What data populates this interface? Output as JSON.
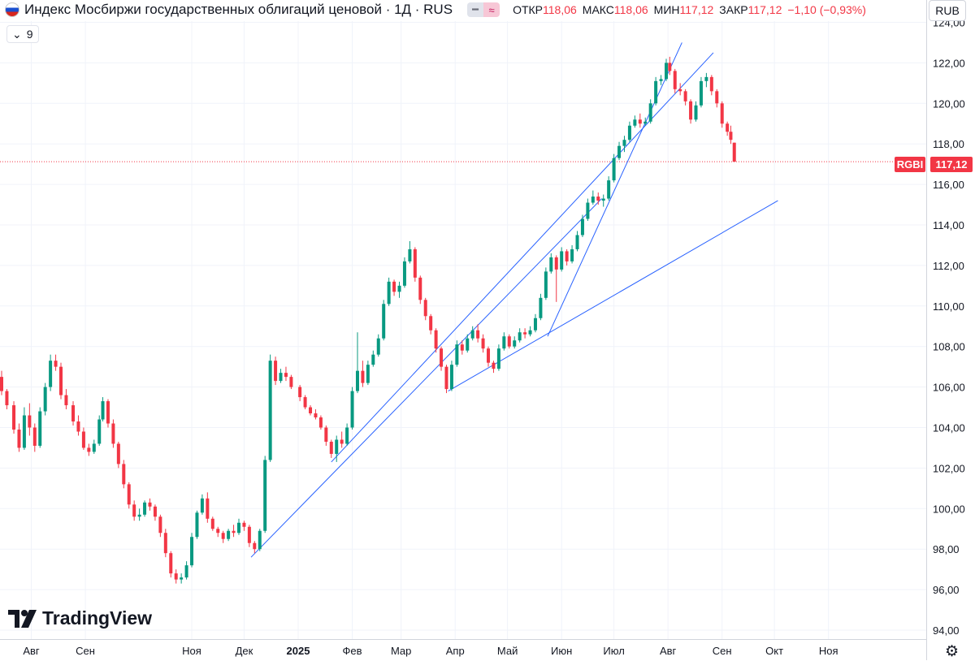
{
  "header": {
    "title": "Индекс Мосбиржи государственных облигаций ценовой · 1Д · RUS",
    "badge_left_icon": "minus-icon",
    "badge_right_icon": "approx-icon",
    "open_label": "ОТКР",
    "open_value": "118,06",
    "high_label": "МАКС",
    "high_value": "118,06",
    "low_label": "МИН",
    "low_value": "117,12",
    "close_label": "ЗАКР",
    "close_value": "117,12",
    "change": "−1,10 (−0,93%)",
    "up_color": "#089981",
    "down_color": "#f23645"
  },
  "indicator": {
    "chevron": "⌄",
    "value": "9"
  },
  "currency": "RUB",
  "price_tag": {
    "symbol": "RGBI",
    "price": "117,12"
  },
  "brand": "TradingView",
  "chart_data": {
    "type": "candlestick",
    "ylim": [
      94,
      124
    ],
    "y_ticks": [
      "94,00",
      "96,00",
      "98,00",
      "100,00",
      "102,00",
      "104,00",
      "106,00",
      "108,00",
      "110,00",
      "112,00",
      "114,00",
      "116,00",
      "118,00",
      "120,00",
      "122,00",
      "124,00"
    ],
    "x_ticks": [
      "Авг",
      "Сен",
      "Ноя",
      "Дек",
      "2025",
      "Фев",
      "Мар",
      "Апр",
      "Май",
      "Июн",
      "Июл",
      "Авг",
      "Сен",
      "Окт",
      "Ноя"
    ],
    "last_price": 117.12,
    "colors": {
      "up": "#089981",
      "down": "#f23645",
      "trendline": "#2962ff"
    },
    "candles": [
      {
        "d": "2024-07-15",
        "o": 106.5,
        "h": 106.8,
        "l": 105.6,
        "c": 105.8
      },
      {
        "d": "2024-07-18",
        "o": 105.8,
        "h": 105.9,
        "l": 104.9,
        "c": 105.1
      },
      {
        "d": "2024-07-22",
        "o": 105.1,
        "h": 105.3,
        "l": 103.7,
        "c": 103.9
      },
      {
        "d": "2024-07-25",
        "o": 103.9,
        "h": 104.2,
        "l": 102.8,
        "c": 103.0
      },
      {
        "d": "2024-07-28",
        "o": 103.0,
        "h": 105.0,
        "l": 102.9,
        "c": 104.6
      },
      {
        "d": "2024-07-31",
        "o": 104.6,
        "h": 105.2,
        "l": 103.6,
        "c": 104.0
      },
      {
        "d": "2024-08-03",
        "o": 104.0,
        "h": 104.2,
        "l": 102.8,
        "c": 103.1
      },
      {
        "d": "2024-08-06",
        "o": 103.1,
        "h": 105.0,
        "l": 103.0,
        "c": 104.8
      },
      {
        "d": "2024-08-09",
        "o": 104.8,
        "h": 106.2,
        "l": 104.6,
        "c": 106.0
      },
      {
        "d": "2024-08-12",
        "o": 106.0,
        "h": 107.6,
        "l": 105.8,
        "c": 107.3
      },
      {
        "d": "2024-08-15",
        "o": 107.3,
        "h": 107.6,
        "l": 106.8,
        "c": 107.0
      },
      {
        "d": "2024-08-18",
        "o": 107.0,
        "h": 107.2,
        "l": 105.4,
        "c": 105.6
      },
      {
        "d": "2024-08-21",
        "o": 105.6,
        "h": 105.9,
        "l": 104.9,
        "c": 105.1
      },
      {
        "d": "2024-08-25",
        "o": 105.1,
        "h": 105.3,
        "l": 104.1,
        "c": 104.3
      },
      {
        "d": "2024-08-28",
        "o": 104.3,
        "h": 104.6,
        "l": 103.6,
        "c": 103.8
      },
      {
        "d": "2024-08-31",
        "o": 103.8,
        "h": 104.0,
        "l": 102.9,
        "c": 103.0
      },
      {
        "d": "2024-09-03",
        "o": 103.0,
        "h": 103.2,
        "l": 102.6,
        "c": 102.8
      },
      {
        "d": "2024-09-06",
        "o": 102.8,
        "h": 103.4,
        "l": 102.7,
        "c": 103.2
      },
      {
        "d": "2024-09-09",
        "o": 103.2,
        "h": 104.6,
        "l": 103.1,
        "c": 104.4
      },
      {
        "d": "2024-09-11",
        "o": 104.4,
        "h": 105.5,
        "l": 104.3,
        "c": 105.3
      },
      {
        "d": "2024-09-14",
        "o": 105.3,
        "h": 105.4,
        "l": 104.0,
        "c": 104.2
      },
      {
        "d": "2024-09-17",
        "o": 104.2,
        "h": 104.4,
        "l": 103.0,
        "c": 103.2
      },
      {
        "d": "2024-09-20",
        "o": 103.2,
        "h": 103.3,
        "l": 102.0,
        "c": 102.2
      },
      {
        "d": "2024-09-23",
        "o": 102.2,
        "h": 102.4,
        "l": 101.0,
        "c": 101.2
      },
      {
        "d": "2024-09-26",
        "o": 101.2,
        "h": 101.3,
        "l": 100.0,
        "c": 100.2
      },
      {
        "d": "2024-09-29",
        "o": 100.2,
        "h": 100.4,
        "l": 99.4,
        "c": 99.6
      },
      {
        "d": "2024-10-02",
        "o": 99.6,
        "h": 100.0,
        "l": 99.4,
        "c": 99.7
      },
      {
        "d": "2024-10-05",
        "o": 99.7,
        "h": 100.4,
        "l": 99.6,
        "c": 100.3
      },
      {
        "d": "2024-10-08",
        "o": 100.3,
        "h": 100.5,
        "l": 99.9,
        "c": 100.1
      },
      {
        "d": "2024-10-11",
        "o": 100.1,
        "h": 100.2,
        "l": 99.4,
        "c": 99.6
      },
      {
        "d": "2024-10-14",
        "o": 99.6,
        "h": 99.7,
        "l": 98.6,
        "c": 98.8
      },
      {
        "d": "2024-10-17",
        "o": 98.8,
        "h": 99.0,
        "l": 97.6,
        "c": 97.8
      },
      {
        "d": "2024-10-20",
        "o": 97.8,
        "h": 97.9,
        "l": 96.6,
        "c": 96.8
      },
      {
        "d": "2024-10-23",
        "o": 96.8,
        "h": 97.0,
        "l": 96.3,
        "c": 96.5
      },
      {
        "d": "2024-10-26",
        "o": 96.5,
        "h": 96.8,
        "l": 96.3,
        "c": 96.6
      },
      {
        "d": "2024-10-29",
        "o": 96.6,
        "h": 97.4,
        "l": 96.5,
        "c": 97.2
      },
      {
        "d": "2024-11-01",
        "o": 97.2,
        "h": 98.8,
        "l": 97.1,
        "c": 98.6
      },
      {
        "d": "2024-11-04",
        "o": 98.6,
        "h": 99.9,
        "l": 98.5,
        "c": 99.8
      },
      {
        "d": "2024-11-07",
        "o": 99.8,
        "h": 100.7,
        "l": 99.7,
        "c": 100.5
      },
      {
        "d": "2024-11-10",
        "o": 100.5,
        "h": 100.8,
        "l": 99.3,
        "c": 99.5
      },
      {
        "d": "2024-11-13",
        "o": 99.5,
        "h": 99.6,
        "l": 98.9,
        "c": 99.0
      },
      {
        "d": "2024-11-16",
        "o": 99.0,
        "h": 99.1,
        "l": 98.6,
        "c": 98.8
      },
      {
        "d": "2024-11-19",
        "o": 98.8,
        "h": 98.9,
        "l": 98.3,
        "c": 98.5
      },
      {
        "d": "2024-11-22",
        "o": 98.5,
        "h": 99.0,
        "l": 98.4,
        "c": 98.9
      },
      {
        "d": "2024-11-25",
        "o": 98.9,
        "h": 99.2,
        "l": 98.6,
        "c": 98.8
      },
      {
        "d": "2024-11-28",
        "o": 98.8,
        "h": 99.5,
        "l": 98.7,
        "c": 99.3
      },
      {
        "d": "2024-12-01",
        "o": 99.3,
        "h": 99.4,
        "l": 98.9,
        "c": 99.1
      },
      {
        "d": "2024-12-04",
        "o": 99.1,
        "h": 99.2,
        "l": 98.1,
        "c": 98.3
      },
      {
        "d": "2024-12-07",
        "o": 98.3,
        "h": 98.4,
        "l": 97.8,
        "c": 98.0
      },
      {
        "d": "2024-12-10",
        "o": 98.0,
        "h": 99.0,
        "l": 97.9,
        "c": 98.9
      },
      {
        "d": "2024-12-13",
        "o": 98.9,
        "h": 102.6,
        "l": 98.8,
        "c": 102.4
      },
      {
        "d": "2024-12-16",
        "o": 102.4,
        "h": 107.6,
        "l": 102.3,
        "c": 107.3
      },
      {
        "d": "2024-12-19",
        "o": 107.3,
        "h": 107.5,
        "l": 106.1,
        "c": 106.3
      },
      {
        "d": "2024-12-22",
        "o": 106.3,
        "h": 106.9,
        "l": 106.2,
        "c": 106.7
      },
      {
        "d": "2024-12-25",
        "o": 106.7,
        "h": 107.0,
        "l": 106.3,
        "c": 106.5
      },
      {
        "d": "2024-12-28",
        "o": 106.5,
        "h": 106.6,
        "l": 105.9,
        "c": 106.0
      },
      {
        "d": "2025-01-02",
        "o": 106.0,
        "h": 106.1,
        "l": 105.3,
        "c": 105.5
      },
      {
        "d": "2025-01-05",
        "o": 105.5,
        "h": 105.6,
        "l": 104.9,
        "c": 105.0
      },
      {
        "d": "2025-01-08",
        "o": 105.0,
        "h": 105.1,
        "l": 104.6,
        "c": 104.7
      },
      {
        "d": "2025-01-11",
        "o": 104.7,
        "h": 104.9,
        "l": 104.4,
        "c": 104.5
      },
      {
        "d": "2025-01-14",
        "o": 104.5,
        "h": 104.6,
        "l": 103.9,
        "c": 104.0
      },
      {
        "d": "2025-01-17",
        "o": 104.0,
        "h": 104.1,
        "l": 103.1,
        "c": 103.3
      },
      {
        "d": "2025-01-20",
        "o": 103.3,
        "h": 103.4,
        "l": 102.5,
        "c": 102.7
      },
      {
        "d": "2025-01-23",
        "o": 102.7,
        "h": 103.6,
        "l": 102.3,
        "c": 103.4
      },
      {
        "d": "2025-01-26",
        "o": 103.4,
        "h": 103.8,
        "l": 103.0,
        "c": 103.2
      },
      {
        "d": "2025-01-29",
        "o": 103.2,
        "h": 104.2,
        "l": 103.1,
        "c": 104.0
      },
      {
        "d": "2025-02-01",
        "o": 104.0,
        "h": 106.0,
        "l": 103.9,
        "c": 105.8
      },
      {
        "d": "2025-02-04",
        "o": 105.8,
        "h": 108.7,
        "l": 105.7,
        "c": 106.8
      },
      {
        "d": "2025-02-07",
        "o": 106.8,
        "h": 107.3,
        "l": 106.0,
        "c": 106.2
      },
      {
        "d": "2025-02-10",
        "o": 106.2,
        "h": 107.3,
        "l": 106.1,
        "c": 107.1
      },
      {
        "d": "2025-02-13",
        "o": 107.1,
        "h": 107.8,
        "l": 107.0,
        "c": 107.6
      },
      {
        "d": "2025-02-16",
        "o": 107.6,
        "h": 108.6,
        "l": 107.5,
        "c": 108.4
      },
      {
        "d": "2025-02-19",
        "o": 108.4,
        "h": 110.3,
        "l": 108.3,
        "c": 110.1
      },
      {
        "d": "2025-02-22",
        "o": 110.1,
        "h": 111.4,
        "l": 110.0,
        "c": 111.2
      },
      {
        "d": "2025-02-25",
        "o": 111.2,
        "h": 111.3,
        "l": 110.5,
        "c": 110.7
      },
      {
        "d": "2025-02-28",
        "o": 110.7,
        "h": 111.2,
        "l": 110.4,
        "c": 111.0
      },
      {
        "d": "2025-03-03",
        "o": 111.0,
        "h": 112.4,
        "l": 110.9,
        "c": 112.2
      },
      {
        "d": "2025-03-06",
        "o": 112.2,
        "h": 113.2,
        "l": 112.1,
        "c": 112.8
      },
      {
        "d": "2025-03-09",
        "o": 112.8,
        "h": 112.9,
        "l": 111.2,
        "c": 111.4
      },
      {
        "d": "2025-03-12",
        "o": 111.4,
        "h": 111.5,
        "l": 110.1,
        "c": 110.3
      },
      {
        "d": "2025-03-15",
        "o": 110.3,
        "h": 110.4,
        "l": 109.3,
        "c": 109.5
      },
      {
        "d": "2025-03-18",
        "o": 109.5,
        "h": 109.6,
        "l": 108.6,
        "c": 108.8
      },
      {
        "d": "2025-03-21",
        "o": 108.8,
        "h": 108.9,
        "l": 107.7,
        "c": 107.9
      },
      {
        "d": "2025-03-24",
        "o": 107.9,
        "h": 108.0,
        "l": 106.8,
        "c": 107.0
      },
      {
        "d": "2025-03-27",
        "o": 107.0,
        "h": 107.1,
        "l": 105.7,
        "c": 105.9
      },
      {
        "d": "2025-03-30",
        "o": 105.9,
        "h": 107.3,
        "l": 105.8,
        "c": 107.1
      },
      {
        "d": "2025-04-02",
        "o": 107.1,
        "h": 108.3,
        "l": 107.0,
        "c": 108.1
      },
      {
        "d": "2025-04-05",
        "o": 108.1,
        "h": 108.3,
        "l": 107.6,
        "c": 107.8
      },
      {
        "d": "2025-04-08",
        "o": 107.8,
        "h": 108.6,
        "l": 107.7,
        "c": 108.4
      },
      {
        "d": "2025-04-11",
        "o": 108.4,
        "h": 109.0,
        "l": 108.3,
        "c": 108.8
      },
      {
        "d": "2025-04-14",
        "o": 108.8,
        "h": 109.1,
        "l": 108.2,
        "c": 108.4
      },
      {
        "d": "2025-04-17",
        "o": 108.4,
        "h": 108.6,
        "l": 107.7,
        "c": 107.9
      },
      {
        "d": "2025-04-20",
        "o": 107.9,
        "h": 108.0,
        "l": 107.0,
        "c": 107.2
      },
      {
        "d": "2025-04-23",
        "o": 107.2,
        "h": 107.3,
        "l": 106.7,
        "c": 106.9
      },
      {
        "d": "2025-04-26",
        "o": 106.9,
        "h": 108.1,
        "l": 106.8,
        "c": 107.9
      },
      {
        "d": "2025-04-29",
        "o": 107.9,
        "h": 108.7,
        "l": 107.8,
        "c": 108.5
      },
      {
        "d": "2025-05-02",
        "o": 108.5,
        "h": 108.6,
        "l": 107.9,
        "c": 108.0
      },
      {
        "d": "2025-05-05",
        "o": 108.0,
        "h": 108.5,
        "l": 107.9,
        "c": 108.3
      },
      {
        "d": "2025-05-08",
        "o": 108.3,
        "h": 108.9,
        "l": 108.2,
        "c": 108.7
      },
      {
        "d": "2025-05-11",
        "o": 108.7,
        "h": 108.9,
        "l": 108.4,
        "c": 108.6
      },
      {
        "d": "2025-05-14",
        "o": 108.6,
        "h": 109.0,
        "l": 108.5,
        "c": 108.8
      },
      {
        "d": "2025-05-17",
        "o": 108.8,
        "h": 109.6,
        "l": 108.7,
        "c": 109.4
      },
      {
        "d": "2025-05-20",
        "o": 109.4,
        "h": 110.6,
        "l": 109.3,
        "c": 110.4
      },
      {
        "d": "2025-05-23",
        "o": 110.4,
        "h": 111.9,
        "l": 110.3,
        "c": 111.7
      },
      {
        "d": "2025-05-26",
        "o": 111.7,
        "h": 112.6,
        "l": 111.6,
        "c": 112.4
      },
      {
        "d": "2025-05-29",
        "o": 112.4,
        "h": 112.5,
        "l": 110.2,
        "c": 111.8
      },
      {
        "d": "2025-06-01",
        "o": 111.8,
        "h": 112.9,
        "l": 111.7,
        "c": 112.7
      },
      {
        "d": "2025-06-04",
        "o": 112.7,
        "h": 112.8,
        "l": 112.0,
        "c": 112.2
      },
      {
        "d": "2025-06-07",
        "o": 112.2,
        "h": 113.0,
        "l": 112.1,
        "c": 112.8
      },
      {
        "d": "2025-06-10",
        "o": 112.8,
        "h": 113.7,
        "l": 112.7,
        "c": 113.5
      },
      {
        "d": "2025-06-13",
        "o": 113.5,
        "h": 114.5,
        "l": 113.4,
        "c": 114.3
      },
      {
        "d": "2025-06-16",
        "o": 114.3,
        "h": 115.3,
        "l": 114.2,
        "c": 115.1
      },
      {
        "d": "2025-06-19",
        "o": 115.1,
        "h": 115.7,
        "l": 115.0,
        "c": 115.4
      },
      {
        "d": "2025-06-22",
        "o": 115.4,
        "h": 115.6,
        "l": 115.0,
        "c": 115.2
      },
      {
        "d": "2025-06-25",
        "o": 115.2,
        "h": 115.5,
        "l": 114.9,
        "c": 115.3
      },
      {
        "d": "2025-06-28",
        "o": 115.3,
        "h": 116.4,
        "l": 115.2,
        "c": 116.2
      },
      {
        "d": "2025-07-01",
        "o": 116.2,
        "h": 117.5,
        "l": 116.1,
        "c": 117.3
      },
      {
        "d": "2025-07-04",
        "o": 117.3,
        "h": 118.1,
        "l": 117.2,
        "c": 117.9
      },
      {
        "d": "2025-07-07",
        "o": 117.9,
        "h": 118.4,
        "l": 117.6,
        "c": 118.2
      },
      {
        "d": "2025-07-10",
        "o": 118.2,
        "h": 119.1,
        "l": 118.1,
        "c": 118.9
      },
      {
        "d": "2025-07-13",
        "o": 118.9,
        "h": 119.4,
        "l": 118.8,
        "c": 119.2
      },
      {
        "d": "2025-07-16",
        "o": 119.2,
        "h": 119.5,
        "l": 118.8,
        "c": 119.0
      },
      {
        "d": "2025-07-19",
        "o": 119.0,
        "h": 119.3,
        "l": 118.9,
        "c": 119.1
      },
      {
        "d": "2025-07-22",
        "o": 119.1,
        "h": 120.2,
        "l": 119.0,
        "c": 120.0
      },
      {
        "d": "2025-07-25",
        "o": 120.0,
        "h": 121.3,
        "l": 119.9,
        "c": 121.1
      },
      {
        "d": "2025-07-28",
        "o": 121.1,
        "h": 121.4,
        "l": 120.9,
        "c": 121.2
      },
      {
        "d": "2025-07-31",
        "o": 121.2,
        "h": 122.2,
        "l": 121.1,
        "c": 122.0
      },
      {
        "d": "2025-08-02",
        "o": 122.0,
        "h": 122.3,
        "l": 121.4,
        "c": 121.6
      },
      {
        "d": "2025-08-05",
        "o": 121.6,
        "h": 121.7,
        "l": 120.5,
        "c": 120.7
      },
      {
        "d": "2025-08-08",
        "o": 120.7,
        "h": 121.0,
        "l": 120.4,
        "c": 120.6
      },
      {
        "d": "2025-08-11",
        "o": 120.6,
        "h": 120.7,
        "l": 119.9,
        "c": 120.1
      },
      {
        "d": "2025-08-14",
        "o": 120.1,
        "h": 120.2,
        "l": 119.0,
        "c": 119.2
      },
      {
        "d": "2025-08-17",
        "o": 119.2,
        "h": 120.1,
        "l": 119.1,
        "c": 119.9
      },
      {
        "d": "2025-08-20",
        "o": 119.9,
        "h": 121.3,
        "l": 119.8,
        "c": 121.1
      },
      {
        "d": "2025-08-23",
        "o": 121.1,
        "h": 121.5,
        "l": 120.8,
        "c": 121.3
      },
      {
        "d": "2025-08-26",
        "o": 121.3,
        "h": 121.4,
        "l": 120.4,
        "c": 120.6
      },
      {
        "d": "2025-08-29",
        "o": 120.6,
        "h": 120.7,
        "l": 119.8,
        "c": 120.0
      },
      {
        "d": "2025-09-01",
        "o": 120.0,
        "h": 120.1,
        "l": 118.8,
        "c": 119.0
      },
      {
        "d": "2025-09-04",
        "o": 119.0,
        "h": 119.1,
        "l": 118.4,
        "c": 118.6
      },
      {
        "d": "2025-09-06",
        "o": 118.6,
        "h": 118.9,
        "l": 118.0,
        "c": 118.2
      },
      {
        "d": "2025-09-08",
        "o": 118.06,
        "h": 118.06,
        "l": 117.12,
        "c": 117.12
      }
    ],
    "trendlines": [
      {
        "x1": "2024-12-05",
        "y1": 97.6,
        "x2": "2025-06-24",
        "y2": 115.3
      },
      {
        "x1": "2025-01-20",
        "y1": 102.3,
        "x2": "2025-08-27",
        "y2": 122.5
      },
      {
        "x1": "2025-03-28",
        "y1": 105.8,
        "x2": "2025-10-03",
        "y2": 115.2
      },
      {
        "x1": "2025-05-24",
        "y1": 108.5,
        "x2": "2025-08-09",
        "y2": 123.0
      }
    ]
  }
}
